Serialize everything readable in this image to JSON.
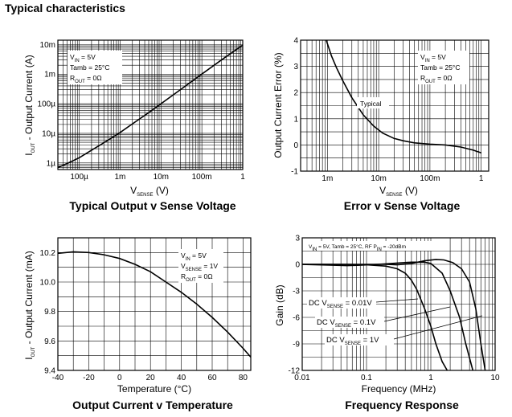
{
  "page_title": "Typical characteristics",
  "chart_data": [
    {
      "type": "line",
      "title": "Typical Output v Sense Voltage",
      "xlabel": "V",
      "xlabel_sub": "SENSE",
      "xlabel_unit": " (V)",
      "ylabel": "I",
      "ylabel_sub": "OUT",
      "ylabel_rest": " - Output Current (A)",
      "xscale": "log",
      "yscale": "log",
      "xlim": [
        3e-05,
        1
      ],
      "ylim": [
        6e-07,
        0.014
      ],
      "xticks": [
        {
          "value": 0.0001,
          "label": "100µ"
        },
        {
          "value": 0.001,
          "label": "1m"
        },
        {
          "value": 0.01,
          "label": "10m"
        },
        {
          "value": 0.1,
          "label": "100m"
        },
        {
          "value": 1,
          "label": "1"
        }
      ],
      "yticks": [
        {
          "value": 1e-06,
          "label": "1µ"
        },
        {
          "value": 1e-05,
          "label": "10µ"
        },
        {
          "value": 0.0001,
          "label": "100µ"
        },
        {
          "value": 0.001,
          "label": "1m"
        },
        {
          "value": 0.01,
          "label": "10m"
        }
      ],
      "annotation_lines": [
        {
          "main": "V",
          "sub": "IN",
          "rest": " = 5V"
        },
        {
          "main": "Tamb = 25°C",
          "sub": "",
          "rest": ""
        },
        {
          "main": "R",
          "sub": "OUT",
          "rest": " = 0Ω"
        }
      ],
      "grid": true,
      "series": [
        {
          "x": [
            3e-05,
            5e-05,
            0.0001,
            0.0002,
            0.0005,
            0.001,
            0.002,
            0.005,
            0.01,
            0.03,
            0.1,
            0.3,
            1
          ],
          "y": [
            7e-07,
            9.5e-07,
            1.5e-06,
            2.7e-06,
            5.8e-06,
            1.07e-05,
            2.1e-05,
            5e-05,
            0.0001,
            0.0003,
            0.001,
            0.003,
            0.0095
          ]
        }
      ]
    },
    {
      "type": "line",
      "title": "Error v Sense Voltage",
      "xlabel": "V",
      "xlabel_sub": "SENSE",
      "xlabel_unit": " (V)",
      "ylabel": "Output Current Error (%)",
      "xscale": "log",
      "yscale": "linear",
      "xlim": [
        0.0003,
        1.4
      ],
      "ylim": [
        -1,
        4
      ],
      "xticks": [
        {
          "value": 0.001,
          "label": "1m"
        },
        {
          "value": 0.01,
          "label": "10m"
        },
        {
          "value": 0.1,
          "label": "100m"
        },
        {
          "value": 1,
          "label": "1"
        }
      ],
      "yticks": [
        {
          "value": -1,
          "label": "-1"
        },
        {
          "value": 0,
          "label": "0"
        },
        {
          "value": 1,
          "label": "1"
        },
        {
          "value": 2,
          "label": "2"
        },
        {
          "value": 3,
          "label": "3"
        },
        {
          "value": 4,
          "label": "4"
        }
      ],
      "annotation_lines": [
        {
          "main": "V",
          "sub": "IN",
          "rest": " = 5V"
        },
        {
          "main": "Tamb = 25°C",
          "sub": "",
          "rest": ""
        },
        {
          "main": "R",
          "sub": "OUT",
          "rest": " = 0Ω"
        }
      ],
      "series_label": "Typical",
      "grid": true,
      "series": [
        {
          "x": [
            0.00095,
            0.0012,
            0.0015,
            0.002,
            0.003,
            0.005,
            0.008,
            0.012,
            0.02,
            0.03,
            0.05,
            0.1,
            0.2,
            0.4,
            0.7,
            1
          ],
          "y": [
            4,
            3.4,
            2.95,
            2.45,
            1.8,
            1.15,
            0.72,
            0.45,
            0.25,
            0.16,
            0.08,
            0.03,
            0.0,
            -0.08,
            -0.2,
            -0.3
          ]
        }
      ]
    },
    {
      "type": "line",
      "title": "Output Current v Temperature",
      "xlabel": "Temperature (°C)",
      "ylabel": "I",
      "ylabel_sub": "OUT",
      "ylabel_rest": " - Output Current (mA)",
      "xscale": "linear",
      "yscale": "linear",
      "xlim": [
        -40,
        85
      ],
      "ylim": [
        9.4,
        10.3
      ],
      "xticks": [
        {
          "value": -40,
          "label": "-40"
        },
        {
          "value": -20,
          "label": "-20"
        },
        {
          "value": 0,
          "label": "0"
        },
        {
          "value": 20,
          "label": "20"
        },
        {
          "value": 40,
          "label": "40"
        },
        {
          "value": 60,
          "label": "60"
        },
        {
          "value": 80,
          "label": "80"
        }
      ],
      "yticks": [
        {
          "value": 9.4,
          "label": "9.4"
        },
        {
          "value": 9.6,
          "label": "9.6"
        },
        {
          "value": 9.8,
          "label": "9.8"
        },
        {
          "value": 10.0,
          "label": "10.0"
        },
        {
          "value": 10.2,
          "label": "10.2"
        }
      ],
      "annotation_lines": [
        {
          "main": "V",
          "sub": "IN",
          "rest": " = 5V"
        },
        {
          "main": "V",
          "sub": "SENSE",
          "rest": " = 1V"
        },
        {
          "main": "R",
          "sub": "OUT",
          "rest": " = 0Ω"
        }
      ],
      "grid": true,
      "series": [
        {
          "x": [
            -40,
            -30,
            -20,
            -10,
            0,
            10,
            20,
            30,
            40,
            50,
            60,
            70,
            80,
            85
          ],
          "y": [
            10.195,
            10.205,
            10.2,
            10.185,
            10.16,
            10.12,
            10.07,
            10.0,
            9.93,
            9.85,
            9.76,
            9.66,
            9.55,
            9.49
          ]
        }
      ]
    },
    {
      "type": "line",
      "title": "Frequency Response",
      "xlabel": "Frequency (MHz)",
      "ylabel": "Gain (dB)",
      "xscale": "log",
      "yscale": "linear",
      "xlim": [
        0.01,
        10
      ],
      "ylim": [
        -12,
        3
      ],
      "xticks": [
        {
          "value": 0.01,
          "label": "0.01"
        },
        {
          "value": 0.1,
          "label": "0.1"
        },
        {
          "value": 1,
          "label": "1"
        },
        {
          "value": 10,
          "label": "10"
        }
      ],
      "yticks": [
        {
          "value": -12,
          "label": "-12"
        },
        {
          "value": -9,
          "label": "-9"
        },
        {
          "value": -6,
          "label": "-6"
        },
        {
          "value": -3,
          "label": "-3"
        },
        {
          "value": 0,
          "label": "0"
        },
        {
          "value": 3,
          "label": "3"
        }
      ],
      "header_note": {
        "p1": "V",
        "s1": "IN",
        "p2": " = 5V, Tamb = 25°C, RF P",
        "s2": "IN",
        "p3": " = -20dBm"
      },
      "grid": true,
      "series": [
        {
          "name_main": "DC V",
          "name_sub": "SENSE",
          "name_rest": " = 0.01V",
          "x": [
            0.01,
            0.05,
            0.1,
            0.2,
            0.3,
            0.5,
            0.8,
            1.2,
            1.6,
            2.2,
            3,
            4,
            5,
            6,
            7
          ],
          "y": [
            0,
            0,
            0,
            0,
            -0.05,
            0.1,
            0.4,
            0.55,
            0.5,
            0.2,
            -0.5,
            -2,
            -5,
            -9,
            -12
          ]
        },
        {
          "name_main": "DC V",
          "name_sub": "SENSE",
          "name_rest": " = 0.1V",
          "x": [
            0.01,
            0.03,
            0.05,
            0.08,
            0.15,
            0.3,
            0.5,
            0.8,
            1,
            1.5,
            2,
            2.8,
            3.5,
            4.5
          ],
          "y": [
            0,
            -0.1,
            -0.15,
            -0.1,
            0.0,
            0.15,
            0.25,
            0.25,
            0.1,
            -1,
            -3,
            -6,
            -9,
            -12
          ]
        },
        {
          "name_main": "DC V",
          "name_sub": "SENSE",
          "name_rest": " = 1V",
          "x": [
            0.01,
            0.05,
            0.1,
            0.2,
            0.3,
            0.4,
            0.5,
            0.6,
            0.8,
            1.0,
            1.2,
            1.5,
            1.8
          ],
          "y": [
            0,
            0,
            -0.05,
            -0.2,
            -0.5,
            -1,
            -1.8,
            -2.8,
            -5,
            -7,
            -9,
            -11,
            -12
          ]
        }
      ]
    }
  ]
}
